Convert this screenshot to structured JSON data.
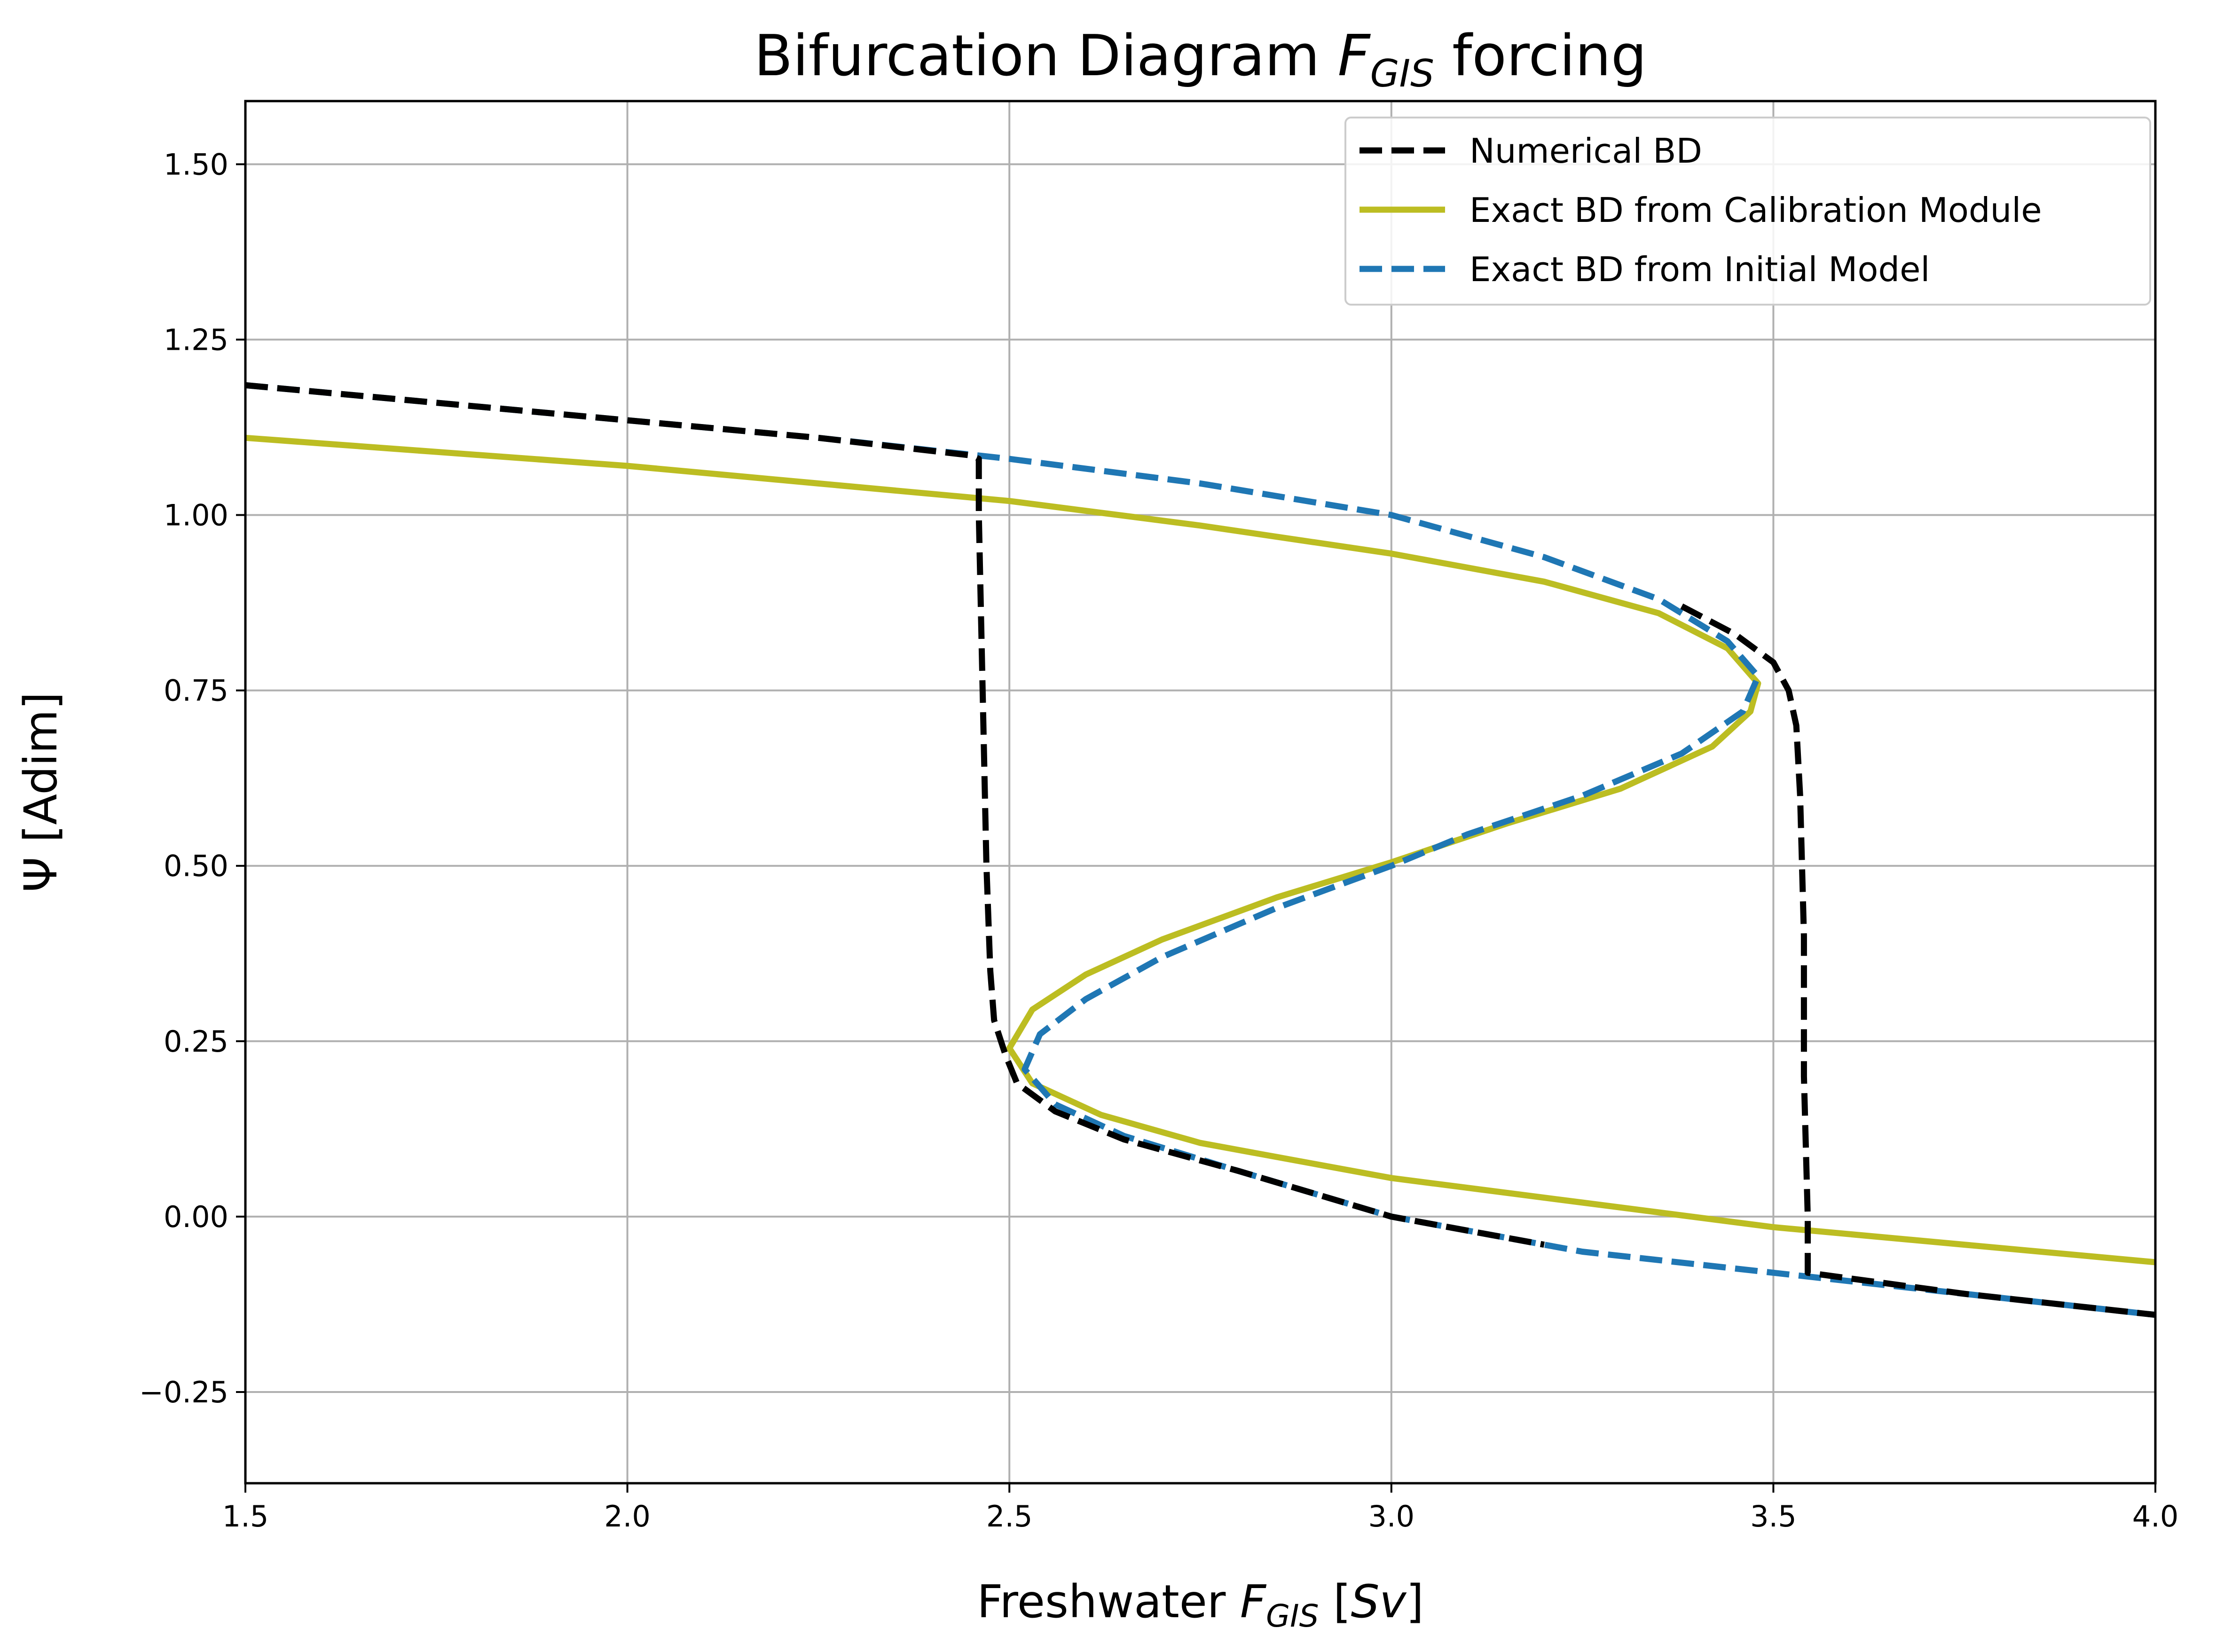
{
  "chart_data": {
    "type": "line",
    "title": {
      "prefix": "Bifurcation Diagram ",
      "math_main": "F",
      "math_sub": "GIS",
      "suffix": " forcing"
    },
    "xlabel": {
      "prefix": "Freshwater ",
      "math_main": "F",
      "math_sub": "GIS",
      "suffix": " [",
      "unit": "Sv",
      "close": "]"
    },
    "ylabel": "Ψ [Adim]",
    "xlim": [
      1.5,
      4.0
    ],
    "ylim": [
      -0.38,
      1.59
    ],
    "xticks": [
      1.5,
      2.0,
      2.5,
      3.0,
      3.5,
      4.0
    ],
    "xtick_labels": [
      "1.5",
      "2.0",
      "2.5",
      "3.0",
      "3.5",
      "4.0"
    ],
    "yticks": [
      -0.25,
      0.0,
      0.25,
      0.5,
      0.75,
      1.0,
      1.25,
      1.5
    ],
    "ytick_labels": [
      "−0.25",
      "0.00",
      "0.25",
      "0.50",
      "0.75",
      "1.00",
      "1.25",
      "1.50"
    ],
    "grid": true,
    "legend_position": "top-right",
    "series": [
      {
        "name": "Exact BD from Calibration Module",
        "color": "#bcbd22",
        "style": "solid",
        "points": [
          [
            1.5,
            1.11
          ],
          [
            1.75,
            1.09
          ],
          [
            2.0,
            1.07
          ],
          [
            2.25,
            1.045
          ],
          [
            2.5,
            1.02
          ],
          [
            2.75,
            0.985
          ],
          [
            3.0,
            0.945
          ],
          [
            3.2,
            0.905
          ],
          [
            3.35,
            0.86
          ],
          [
            3.44,
            0.81
          ],
          [
            3.48,
            0.76
          ],
          [
            3.47,
            0.72
          ],
          [
            3.42,
            0.67
          ],
          [
            3.3,
            0.61
          ],
          [
            3.15,
            0.56
          ],
          [
            3.0,
            0.505
          ],
          [
            2.85,
            0.455
          ],
          [
            2.7,
            0.395
          ],
          [
            2.6,
            0.345
          ],
          [
            2.53,
            0.295
          ],
          [
            2.5,
            0.24
          ],
          [
            2.53,
            0.19
          ],
          [
            2.62,
            0.145
          ],
          [
            2.75,
            0.105
          ],
          [
            2.9,
            0.075
          ],
          [
            3.0,
            0.055
          ],
          [
            3.25,
            0.02
          ],
          [
            3.5,
            -0.015
          ],
          [
            3.75,
            -0.04
          ],
          [
            4.0,
            -0.065
          ]
        ]
      },
      {
        "name": "Exact BD from Initial Model",
        "color": "#1f77b4",
        "style": "dashed",
        "points": [
          [
            1.5,
            1.185
          ],
          [
            1.75,
            1.16
          ],
          [
            2.0,
            1.135
          ],
          [
            2.25,
            1.11
          ],
          [
            2.5,
            1.08
          ],
          [
            2.75,
            1.045
          ],
          [
            3.0,
            1.0
          ],
          [
            3.2,
            0.94
          ],
          [
            3.35,
            0.88
          ],
          [
            3.44,
            0.82
          ],
          [
            3.48,
            0.77
          ],
          [
            3.46,
            0.72
          ],
          [
            3.38,
            0.66
          ],
          [
            3.25,
            0.6
          ],
          [
            3.1,
            0.545
          ],
          [
            3.0,
            0.5
          ],
          [
            2.85,
            0.44
          ],
          [
            2.7,
            0.37
          ],
          [
            2.6,
            0.31
          ],
          [
            2.54,
            0.26
          ],
          [
            2.52,
            0.21
          ],
          [
            2.56,
            0.16
          ],
          [
            2.65,
            0.115
          ],
          [
            2.8,
            0.065
          ],
          [
            3.0,
            0.0
          ],
          [
            3.25,
            -0.05
          ],
          [
            3.5,
            -0.08
          ],
          [
            3.75,
            -0.11
          ],
          [
            4.0,
            -0.14
          ]
        ]
      },
      {
        "name": "Numerical BD",
        "color": "#000000",
        "style": "dashed",
        "points": [
          [
            1.5,
            1.185
          ],
          [
            1.75,
            1.16
          ],
          [
            2.0,
            1.135
          ],
          [
            2.25,
            1.11
          ],
          [
            2.45,
            1.085
          ],
          [
            2.46,
            1.08
          ],
          [
            2.46,
            1.0
          ],
          [
            2.465,
            0.75
          ],
          [
            2.47,
            0.5
          ],
          [
            2.475,
            0.35
          ],
          [
            2.48,
            0.28
          ],
          [
            2.495,
            0.23
          ],
          [
            2.51,
            0.19
          ],
          [
            2.56,
            0.15
          ],
          [
            2.65,
            0.11
          ],
          [
            2.8,
            0.065
          ],
          [
            3.0,
            0.0
          ],
          [
            3.2,
            -0.04
          ]
        ]
      },
      {
        "name": "Numerical BD",
        "color": "#000000",
        "style": "dashed",
        "points": [
          [
            3.38,
            0.87
          ],
          [
            3.45,
            0.83
          ],
          [
            3.5,
            0.79
          ],
          [
            3.52,
            0.75
          ],
          [
            3.53,
            0.7
          ],
          [
            3.535,
            0.6
          ],
          [
            3.54,
            0.4
          ],
          [
            3.54,
            0.2
          ],
          [
            3.545,
            0.0
          ],
          [
            3.545,
            -0.08
          ],
          [
            3.75,
            -0.11
          ],
          [
            4.0,
            -0.14
          ]
        ]
      }
    ],
    "legend": [
      {
        "name": "Numerical BD",
        "color": "#000000",
        "style": "dashed"
      },
      {
        "name": "Exact BD from Calibration Module",
        "color": "#bcbd22",
        "style": "solid"
      },
      {
        "name": "Exact BD from Initial Model",
        "color": "#1f77b4",
        "style": "dashed"
      }
    ]
  }
}
